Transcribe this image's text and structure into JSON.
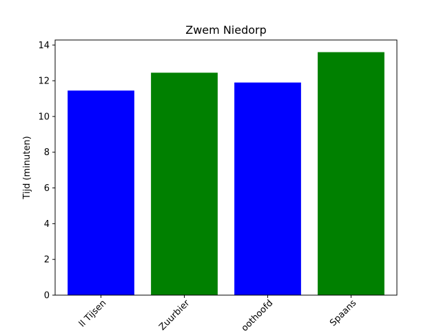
{
  "chart_data": {
    "type": "bar",
    "title": "Zwem Niedorp",
    "xlabel": "",
    "ylabel": "Tijd (minuten)",
    "categories": [
      "ll Tijsen",
      "Zuurbier",
      "oothoofd",
      "Spaans"
    ],
    "values": [
      11.45,
      12.45,
      11.9,
      13.6
    ],
    "bar_colors": [
      "#0000ff",
      "#008000",
      "#0000ff",
      "#008000"
    ],
    "ylim": [
      0,
      14.28
    ],
    "yticks": [
      0,
      2,
      4,
      6,
      8,
      10,
      12,
      14
    ],
    "grid": false,
    "legend": "none"
  }
}
